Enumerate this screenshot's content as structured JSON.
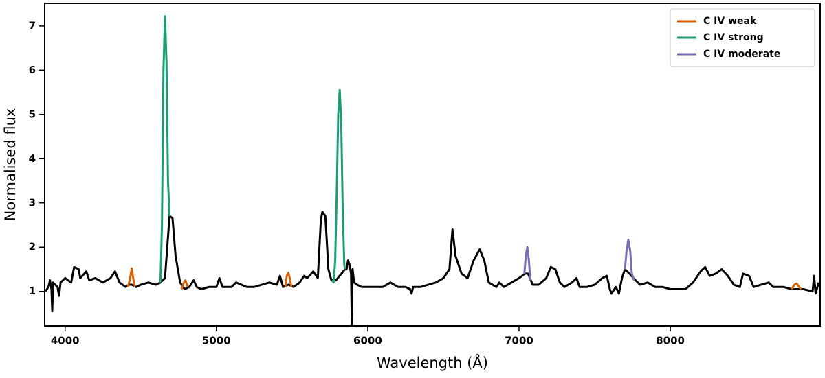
{
  "chart_data": {
    "type": "line",
    "xlabel": "Wavelength (Å)",
    "ylabel": "Normalised flux",
    "xlim": [
      3865,
      8990
    ],
    "ylim": [
      0.22,
      7.51
    ],
    "xticks": [
      4000,
      5000,
      6000,
      7000,
      8000
    ],
    "yticks": [
      1,
      2,
      3,
      4,
      5,
      6,
      7
    ],
    "legend": "upper right",
    "series": [
      {
        "color": "#000000",
        "x": [
          3870,
          3890,
          3900,
          3910,
          3915,
          3920,
          3950,
          3960,
          3970,
          4000,
          4040,
          4060,
          4090,
          4100,
          4140,
          4160,
          4200,
          4250,
          4300,
          4330,
          4360,
          4400,
          4420,
          4440,
          4470,
          4500,
          4550,
          4600,
          4630,
          4660,
          4690,
          4700,
          4710,
          4730,
          4760,
          4790,
          4820,
          4850,
          4870,
          4900,
          4950,
          5000,
          5020,
          5040,
          5100,
          5130,
          5200,
          5250,
          5300,
          5350,
          5400,
          5420,
          5440,
          5475,
          5510,
          5550,
          5580,
          5600,
          5640,
          5670,
          5690,
          5700,
          5720,
          5740,
          5760,
          5790,
          5850,
          5860,
          5870,
          5880,
          5890,
          5895,
          5900,
          5910,
          5930,
          5960,
          6000,
          6100,
          6150,
          6200,
          6250,
          6280,
          6290,
          6300,
          6350,
          6400,
          6450,
          6500,
          6540,
          6560,
          6580,
          6620,
          6660,
          6700,
          6740,
          6770,
          6800,
          6850,
          6870,
          6900,
          6950,
          7000,
          7040,
          7060,
          7090,
          7130,
          7180,
          7210,
          7240,
          7270,
          7300,
          7350,
          7380,
          7400,
          7450,
          7500,
          7550,
          7580,
          7600,
          7610,
          7640,
          7660,
          7680,
          7700,
          7730,
          7770,
          7800,
          7850,
          7900,
          7950,
          8000,
          8100,
          8150,
          8200,
          8230,
          8260,
          8300,
          8340,
          8380,
          8420,
          8460,
          8480,
          8520,
          8550,
          8600,
          8650,
          8680,
          8750,
          8800,
          8830,
          8880,
          8940,
          8950,
          8960,
          8980
        ],
        "values": [
          1.0,
          1.1,
          1.25,
          1.05,
          0.55,
          1.2,
          1.1,
          0.9,
          1.2,
          1.3,
          1.2,
          1.55,
          1.5,
          1.3,
          1.45,
          1.25,
          1.3,
          1.2,
          1.3,
          1.45,
          1.2,
          1.1,
          1.15,
          1.15,
          1.1,
          1.15,
          1.2,
          1.15,
          1.2,
          1.3,
          2.7,
          2.68,
          2.65,
          1.8,
          1.2,
          1.05,
          1.1,
          1.25,
          1.1,
          1.05,
          1.1,
          1.1,
          1.3,
          1.1,
          1.1,
          1.2,
          1.1,
          1.1,
          1.15,
          1.2,
          1.15,
          1.35,
          1.1,
          1.15,
          1.1,
          1.2,
          1.35,
          1.3,
          1.45,
          1.3,
          2.6,
          2.8,
          2.7,
          1.5,
          1.25,
          1.25,
          1.5,
          1.5,
          1.7,
          1.6,
          1.4,
          0.25,
          1.5,
          1.2,
          1.15,
          1.1,
          1.1,
          1.1,
          1.2,
          1.1,
          1.1,
          1.05,
          0.95,
          1.1,
          1.1,
          1.15,
          1.2,
          1.3,
          1.5,
          2.4,
          1.8,
          1.4,
          1.3,
          1.7,
          1.95,
          1.7,
          1.2,
          1.1,
          1.2,
          1.1,
          1.2,
          1.3,
          1.4,
          1.4,
          1.15,
          1.15,
          1.3,
          1.55,
          1.5,
          1.2,
          1.1,
          1.2,
          1.3,
          1.1,
          1.1,
          1.15,
          1.3,
          1.35,
          1.05,
          0.95,
          1.1,
          0.95,
          1.3,
          1.5,
          1.4,
          1.25,
          1.15,
          1.2,
          1.1,
          1.1,
          1.05,
          1.05,
          1.2,
          1.45,
          1.55,
          1.35,
          1.4,
          1.5,
          1.35,
          1.15,
          1.1,
          1.4,
          1.35,
          1.1,
          1.15,
          1.2,
          1.1,
          1.1,
          1.05,
          1.05,
          1.05,
          1.0,
          1.35,
          0.95,
          1.2
        ]
      },
      {
        "name": "C IV weak",
        "color": "#d95f02",
        "x": [
          4415,
          4430,
          4440,
          4450,
          4460,
          4600,
          4770,
          4785,
          4795,
          4810,
          5000,
          5455,
          5465,
          5475,
          5485,
          5495,
          7000,
          8800,
          8820,
          8835,
          8850,
          8865
        ],
        "values": [
          1.1,
          1.3,
          1.52,
          1.3,
          1.1,
          null,
          1.05,
          1.2,
          1.25,
          1.1,
          null,
          1.1,
          1.35,
          1.42,
          1.3,
          1.1,
          null,
          1.05,
          1.15,
          1.18,
          1.1,
          1.05
        ]
      },
      {
        "name": "C IV strong",
        "color": "#1b9e77",
        "x": [
          4630,
          4640,
          4650,
          4660,
          4670,
          4680,
          4690,
          5000,
          5765,
          5775,
          5785,
          5795,
          5805,
          5815,
          5825,
          5835,
          5845,
          5850
        ],
        "values": [
          1.2,
          2.5,
          6.0,
          7.22,
          6.2,
          3.5,
          2.7,
          null,
          1.25,
          1.2,
          1.7,
          3.2,
          5.0,
          5.55,
          4.8,
          2.8,
          1.6,
          1.5
        ]
      },
      {
        "name": "C IV moderate",
        "color": "#7570b3",
        "x": [
          7035,
          7045,
          7055,
          7065,
          7075,
          7400,
          7700,
          7710,
          7722,
          7735,
          7745,
          7760
        ],
        "values": [
          1.4,
          1.8,
          2.0,
          1.7,
          1.25,
          null,
          1.5,
          1.9,
          2.17,
          1.9,
          1.4,
          1.25
        ]
      }
    ]
  }
}
